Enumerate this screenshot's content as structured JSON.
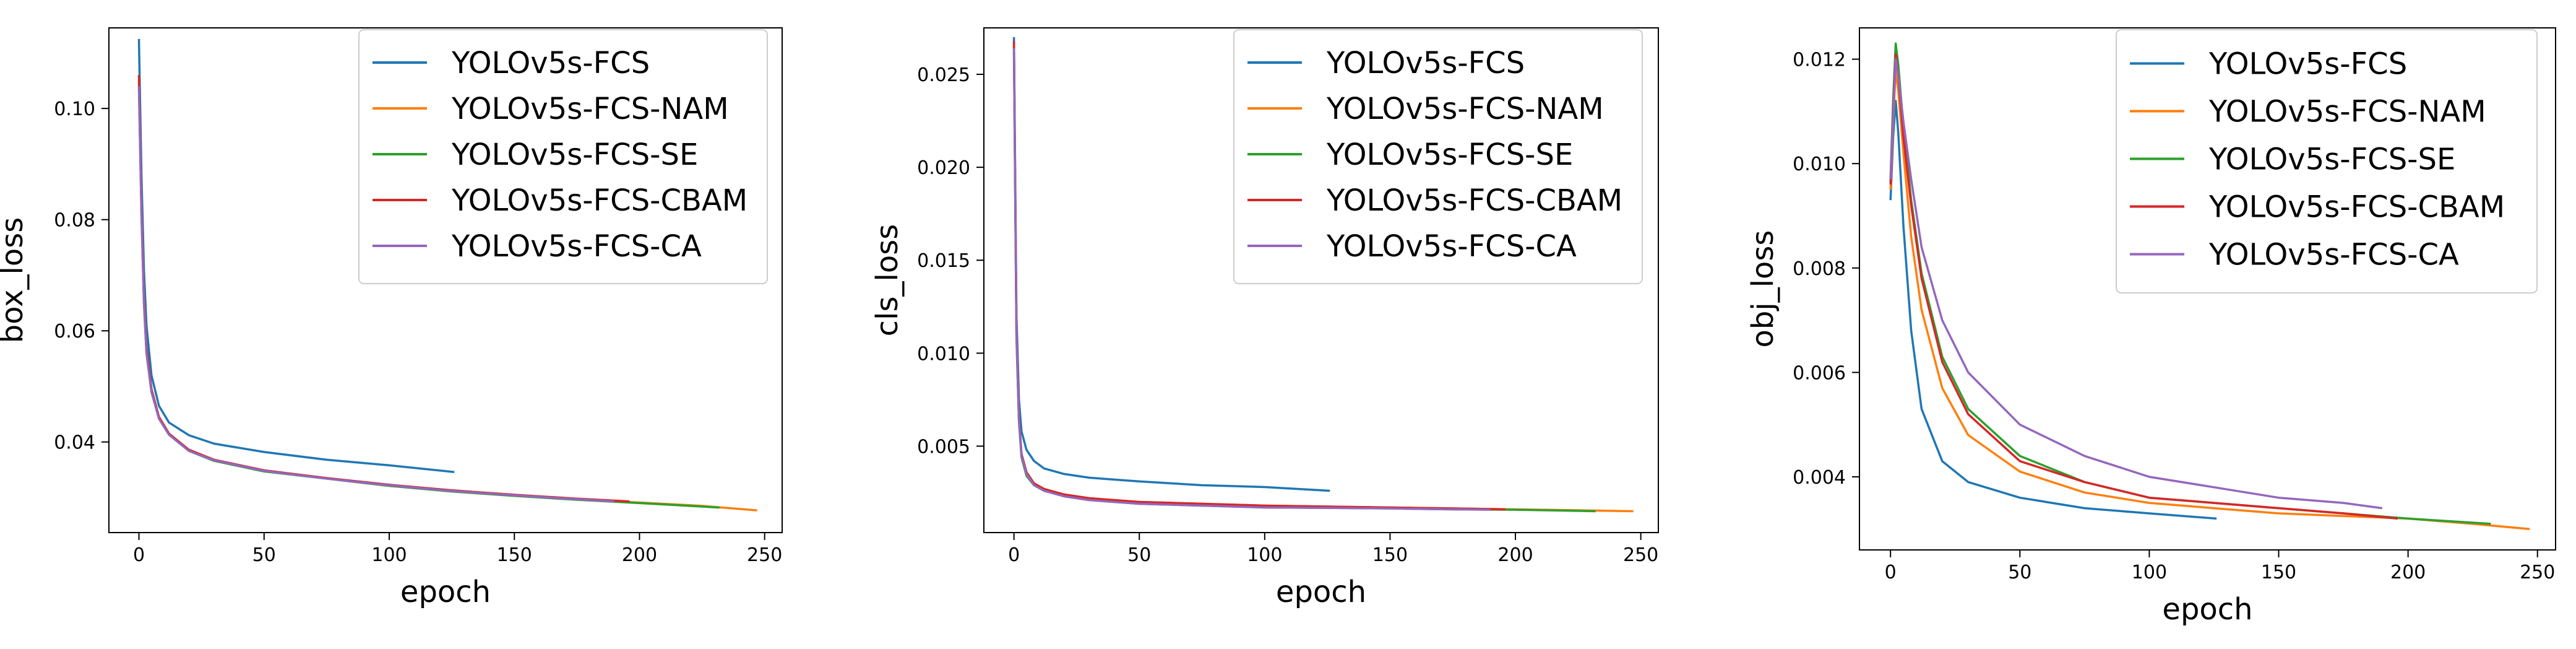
{
  "chart_data": [
    {
      "type": "line",
      "xlabel": "epoch",
      "ylabel": "box_loss",
      "xlim": [
        -12,
        257
      ],
      "ylim": [
        0.0237,
        0.1145
      ],
      "xticks": [
        0,
        50,
        100,
        150,
        200,
        250
      ],
      "xtick_labels": [
        "0",
        "50",
        "100",
        "150",
        "200",
        "250"
      ],
      "yticks": [
        0.04,
        0.06,
        0.08,
        0.1
      ],
      "ytick_labels": [
        "0.04",
        "0.06",
        "0.08",
        "0.10"
      ],
      "grid": false,
      "legend_position": "top-right",
      "series": [
        {
          "name": "YOLOv5s-FCS",
          "color": "#1f77b4",
          "x": [
            0,
            1,
            2,
            3,
            5,
            8,
            12,
            20,
            30,
            50,
            75,
            100,
            126
          ],
          "y": [
            0.1125,
            0.088,
            0.071,
            0.061,
            0.052,
            0.0465,
            0.0435,
            0.0412,
            0.0397,
            0.0382,
            0.0368,
            0.0358,
            0.0346
          ]
        },
        {
          "name": "YOLOv5s-FCS-NAM",
          "color": "#ff7f0e",
          "x": [
            0,
            1,
            2,
            3,
            5,
            8,
            12,
            20,
            30,
            50,
            75,
            100,
            125,
            150,
            175,
            200,
            225,
            247
          ],
          "y": [
            0.105,
            0.082,
            0.066,
            0.057,
            0.0495,
            0.0445,
            0.0415,
            0.0385,
            0.0368,
            0.0348,
            0.0335,
            0.0322,
            0.0313,
            0.0305,
            0.0297,
            0.0291,
            0.0285,
            0.0277
          ]
        },
        {
          "name": "YOLOv5s-FCS-SE",
          "color": "#2ca02c",
          "x": [
            0,
            1,
            2,
            3,
            5,
            8,
            12,
            20,
            30,
            50,
            75,
            100,
            125,
            150,
            175,
            200,
            232
          ],
          "y": [
            0.104,
            0.081,
            0.065,
            0.056,
            0.049,
            0.0442,
            0.0413,
            0.0384,
            0.0366,
            0.0347,
            0.0334,
            0.0321,
            0.0311,
            0.0303,
            0.0296,
            0.029,
            0.0282
          ]
        },
        {
          "name": "YOLOv5s-FCS-CBAM",
          "color": "#d62728",
          "x": [
            0,
            1,
            2,
            3,
            5,
            8,
            12,
            20,
            30,
            50,
            75,
            100,
            125,
            150,
            175,
            196
          ],
          "y": [
            0.106,
            0.082,
            0.066,
            0.057,
            0.0495,
            0.0445,
            0.0415,
            0.0386,
            0.0368,
            0.0349,
            0.0335,
            0.0323,
            0.0313,
            0.0305,
            0.0298,
            0.0293
          ]
        },
        {
          "name": "YOLOv5s-FCS-CA",
          "color": "#9467bd",
          "x": [
            0,
            1,
            2,
            3,
            5,
            8,
            12,
            20,
            30,
            50,
            75,
            100,
            125,
            150,
            175,
            190
          ],
          "y": [
            0.104,
            0.081,
            0.065,
            0.056,
            0.049,
            0.0442,
            0.0413,
            0.0384,
            0.0367,
            0.0348,
            0.0334,
            0.0322,
            0.0312,
            0.0304,
            0.0297,
            0.0293
          ]
        }
      ]
    },
    {
      "type": "line",
      "xlabel": "epoch",
      "ylabel": "cls_loss",
      "xlim": [
        -12,
        257
      ],
      "ylim": [
        0.00035,
        0.0275
      ],
      "xticks": [
        0,
        50,
        100,
        150,
        200,
        250
      ],
      "xtick_labels": [
        "0",
        "50",
        "100",
        "150",
        "200",
        "250"
      ],
      "yticks": [
        0.005,
        0.01,
        0.015,
        0.02,
        0.025
      ],
      "ytick_labels": [
        "0.005",
        "0.010",
        "0.015",
        "0.020",
        "0.025"
      ],
      "grid": false,
      "legend_position": "top-right",
      "series": [
        {
          "name": "YOLOv5s-FCS",
          "color": "#1f77b4",
          "x": [
            0,
            1,
            2,
            3,
            5,
            8,
            12,
            20,
            30,
            50,
            75,
            100,
            126
          ],
          "y": [
            0.027,
            0.012,
            0.0075,
            0.0058,
            0.0048,
            0.0042,
            0.0038,
            0.0035,
            0.0033,
            0.0031,
            0.0029,
            0.0028,
            0.0026
          ]
        },
        {
          "name": "YOLOv5s-FCS-NAM",
          "color": "#ff7f0e",
          "x": [
            0,
            1,
            2,
            3,
            5,
            8,
            12,
            20,
            30,
            50,
            75,
            100,
            125,
            150,
            175,
            200,
            225,
            247
          ],
          "y": [
            0.0265,
            0.011,
            0.0065,
            0.0045,
            0.0035,
            0.003,
            0.0027,
            0.0024,
            0.0022,
            0.002,
            0.0019,
            0.0018,
            0.00175,
            0.0017,
            0.00165,
            0.0016,
            0.00155,
            0.0015
          ]
        },
        {
          "name": "YOLOv5s-FCS-SE",
          "color": "#2ca02c",
          "x": [
            0,
            1,
            2,
            3,
            5,
            8,
            12,
            20,
            30,
            50,
            75,
            100,
            125,
            150,
            175,
            200,
            232
          ],
          "y": [
            0.0262,
            0.0108,
            0.0063,
            0.0044,
            0.0034,
            0.0029,
            0.0026,
            0.0023,
            0.0021,
            0.0019,
            0.0018,
            0.0017,
            0.00168,
            0.00165,
            0.0016,
            0.00158,
            0.0015
          ]
        },
        {
          "name": "YOLOv5s-FCS-CBAM",
          "color": "#d62728",
          "x": [
            0,
            1,
            2,
            3,
            5,
            8,
            12,
            20,
            30,
            50,
            75,
            100,
            125,
            150,
            175,
            196
          ],
          "y": [
            0.0268,
            0.0112,
            0.0066,
            0.0046,
            0.0036,
            0.003,
            0.0027,
            0.0024,
            0.0022,
            0.002,
            0.0019,
            0.0018,
            0.00175,
            0.0017,
            0.00165,
            0.0016
          ]
        },
        {
          "name": "YOLOv5s-FCS-CA",
          "color": "#9467bd",
          "x": [
            0,
            1,
            2,
            3,
            5,
            8,
            12,
            20,
            30,
            50,
            75,
            100,
            125,
            150,
            175,
            190
          ],
          "y": [
            0.0264,
            0.0109,
            0.0064,
            0.0045,
            0.0035,
            0.0029,
            0.0026,
            0.0023,
            0.0021,
            0.0019,
            0.0018,
            0.0017,
            0.00168,
            0.00165,
            0.0016,
            0.00158
          ]
        }
      ]
    },
    {
      "type": "line",
      "xlabel": "epoch",
      "ylabel": "obj_loss",
      "xlim": [
        -12,
        257
      ],
      "ylim": [
        0.0026,
        0.0126
      ],
      "xticks": [
        0,
        50,
        100,
        150,
        200,
        250
      ],
      "xtick_labels": [
        "0",
        "50",
        "100",
        "150",
        "200",
        "250"
      ],
      "yticks": [
        0.004,
        0.006,
        0.008,
        0.01,
        0.012
      ],
      "ytick_labels": [
        "0.004",
        "0.006",
        "0.008",
        "0.010",
        "0.012"
      ],
      "grid": false,
      "legend_position": "top-right",
      "series": [
        {
          "name": "YOLOv5s-FCS",
          "color": "#1f77b4",
          "x": [
            0,
            1,
            2,
            3,
            5,
            8,
            12,
            20,
            30,
            50,
            75,
            100,
            126
          ],
          "y": [
            0.0093,
            0.0105,
            0.0112,
            0.0106,
            0.0088,
            0.0068,
            0.0053,
            0.0043,
            0.0039,
            0.0036,
            0.0034,
            0.0033,
            0.0032
          ]
        },
        {
          "name": "YOLOv5s-FCS-NAM",
          "color": "#ff7f0e",
          "x": [
            0,
            1,
            2,
            3,
            5,
            8,
            12,
            20,
            30,
            50,
            75,
            100,
            125,
            150,
            175,
            200,
            225,
            247
          ],
          "y": [
            0.0095,
            0.0108,
            0.0118,
            0.0114,
            0.0102,
            0.0086,
            0.0072,
            0.0057,
            0.0048,
            0.0041,
            0.0037,
            0.0035,
            0.0034,
            0.0033,
            0.00325,
            0.0032,
            0.0031,
            0.003
          ]
        },
        {
          "name": "YOLOv5s-FCS-SE",
          "color": "#2ca02c",
          "x": [
            0,
            1,
            2,
            3,
            5,
            8,
            12,
            20,
            30,
            50,
            75,
            100,
            125,
            150,
            175,
            200,
            232
          ],
          "y": [
            0.0097,
            0.0112,
            0.0123,
            0.0119,
            0.0107,
            0.0093,
            0.0079,
            0.0063,
            0.0053,
            0.0044,
            0.0039,
            0.0036,
            0.0035,
            0.0034,
            0.0033,
            0.0032,
            0.0031
          ]
        },
        {
          "name": "YOLOv5s-FCS-CBAM",
          "color": "#d62728",
          "x": [
            0,
            1,
            2,
            3,
            5,
            8,
            12,
            20,
            30,
            50,
            75,
            100,
            125,
            150,
            175,
            196
          ],
          "y": [
            0.0096,
            0.011,
            0.0121,
            0.0117,
            0.0105,
            0.0092,
            0.0078,
            0.0062,
            0.0052,
            0.0043,
            0.0039,
            0.0036,
            0.0035,
            0.0034,
            0.0033,
            0.0032
          ]
        },
        {
          "name": "YOLOv5s-FCS-CA",
          "color": "#9467bd",
          "x": [
            0,
            1,
            2,
            3,
            5,
            8,
            12,
            20,
            30,
            50,
            75,
            100,
            125,
            150,
            175,
            190
          ],
          "y": [
            0.0097,
            0.0109,
            0.012,
            0.0117,
            0.0108,
            0.0097,
            0.0084,
            0.007,
            0.006,
            0.005,
            0.0044,
            0.004,
            0.0038,
            0.0036,
            0.0035,
            0.0034
          ]
        }
      ]
    }
  ]
}
